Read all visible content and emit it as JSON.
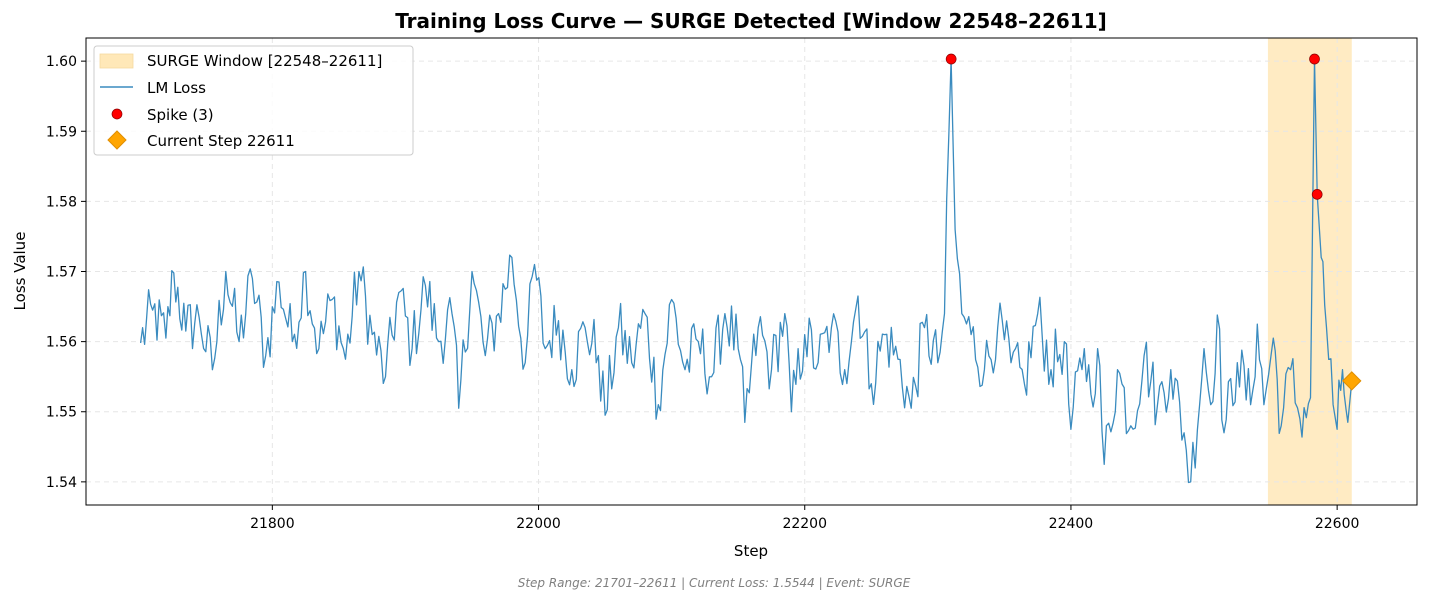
{
  "chart_data": {
    "type": "line",
    "title": "Training Loss Curve — SURGE Detected [Window 22548–22611]",
    "xlabel": "Step",
    "ylabel": "Loss Value",
    "xlim": [
      21660,
      22660
    ],
    "ylim": [
      1.5367,
      1.6033
    ],
    "x_ticks": [
      21800,
      22000,
      22200,
      22400,
      22600
    ],
    "x_tick_labels": [
      "21800",
      "22000",
      "22200",
      "22400",
      "22600"
    ],
    "y_ticks": [
      1.54,
      1.55,
      1.56,
      1.57,
      1.58,
      1.59,
      1.6
    ],
    "y_tick_labels": [
      "1.54",
      "1.55",
      "1.56",
      "1.57",
      "1.58",
      "1.59",
      "1.60"
    ],
    "grid": true,
    "legend_position": "top-left",
    "surge_window": {
      "name": "SURGE Window [22548–22611]",
      "start": 22548,
      "end": 22611,
      "color": "#ffe8b8"
    },
    "series": [
      {
        "name": "LM Loss",
        "color": "#3a8bbf",
        "step_start": 21701,
        "step_end": 22611,
        "points": [
          [
            21701,
            1.5598
          ],
          [
            21710,
            1.5645
          ],
          [
            21720,
            1.5605
          ],
          [
            21726,
            1.5698
          ],
          [
            21735,
            1.5615
          ],
          [
            21745,
            1.5635
          ],
          [
            21755,
            1.556
          ],
          [
            21765,
            1.57
          ],
          [
            21775,
            1.56
          ],
          [
            21785,
            1.569
          ],
          [
            21795,
            1.558
          ],
          [
            21805,
            1.5685
          ],
          [
            21815,
            1.56
          ],
          [
            21825,
            1.57
          ],
          [
            21835,
            1.559
          ],
          [
            21845,
            1.566
          ],
          [
            21855,
            1.5575
          ],
          [
            21865,
            1.57
          ],
          [
            21875,
            1.561
          ],
          [
            21885,
            1.555
          ],
          [
            21895,
            1.567
          ],
          [
            21905,
            1.559
          ],
          [
            21915,
            1.568
          ],
          [
            21925,
            1.56
          ],
          [
            21935,
            1.564
          ],
          [
            21940,
            1.5505
          ],
          [
            21950,
            1.57
          ],
          [
            21960,
            1.558
          ],
          [
            21970,
            1.564
          ],
          [
            21980,
            1.572
          ],
          [
            21990,
            1.557
          ],
          [
            21997,
            1.571
          ],
          [
            22005,
            1.559
          ],
          [
            22015,
            1.563
          ],
          [
            22025,
            1.556
          ],
          [
            22035,
            1.562
          ],
          [
            22045,
            1.558
          ],
          [
            22050,
            1.5495
          ],
          [
            22060,
            1.562
          ],
          [
            22070,
            1.557
          ],
          [
            22080,
            1.564
          ],
          [
            22090,
            1.551
          ],
          [
            22100,
            1.566
          ],
          [
            22110,
            1.556
          ],
          [
            22120,
            1.56
          ],
          [
            22130,
            1.555
          ],
          [
            22140,
            1.564
          ],
          [
            22150,
            1.559
          ],
          [
            22155,
            1.5485
          ],
          [
            22165,
            1.562
          ],
          [
            22175,
            1.556
          ],
          [
            22185,
            1.564
          ],
          [
            22190,
            1.55
          ],
          [
            22200,
            1.561
          ],
          [
            22210,
            1.557
          ],
          [
            22220,
            1.562
          ],
          [
            22230,
            1.556
          ],
          [
            22240,
            1.5665
          ],
          [
            22250,
            1.554
          ],
          [
            22260,
            1.561
          ],
          [
            22270,
            1.5575
          ],
          [
            22280,
            1.5505
          ],
          [
            22290,
            1.562
          ],
          [
            22300,
            1.557
          ],
          [
            22305,
            1.564
          ],
          [
            22310,
            1.6003
          ],
          [
            22313,
            1.576
          ],
          [
            22318,
            1.564
          ],
          [
            22325,
            1.561
          ],
          [
            22335,
            1.556
          ],
          [
            22345,
            1.562
          ],
          [
            22355,
            1.557
          ],
          [
            22365,
            1.554
          ],
          [
            22375,
            1.564
          ],
          [
            22385,
            1.556
          ],
          [
            22395,
            1.56
          ],
          [
            22400,
            1.5475
          ],
          [
            22410,
            1.559
          ],
          [
            22415,
            1.5525
          ],
          [
            22420,
            1.559
          ],
          [
            22425,
            1.5425
          ],
          [
            22435,
            1.556
          ],
          [
            22445,
            1.548
          ],
          [
            22455,
            1.558
          ],
          [
            22465,
            1.551
          ],
          [
            22475,
            1.556
          ],
          [
            22485,
            1.547
          ],
          [
            22490,
            1.54
          ],
          [
            22500,
            1.559
          ],
          [
            22505,
            1.551
          ],
          [
            22510,
            1.5638
          ],
          [
            22515,
            1.547
          ],
          [
            22525,
            1.557
          ],
          [
            22535,
            1.551
          ],
          [
            22540,
            1.5625
          ],
          [
            22545,
            1.551
          ],
          [
            22552,
            1.5605
          ],
          [
            22558,
            1.548
          ],
          [
            22565,
            1.556
          ],
          [
            22572,
            1.549
          ],
          [
            22580,
            1.552
          ],
          [
            22583,
            1.6003
          ],
          [
            22585,
            1.581
          ],
          [
            22588,
            1.572
          ],
          [
            22592,
            1.562
          ],
          [
            22597,
            1.551
          ],
          [
            22600,
            1.5475
          ],
          [
            22604,
            1.556
          ],
          [
            22608,
            1.5485
          ],
          [
            22611,
            1.5544
          ]
        ]
      }
    ],
    "spikes": {
      "name": "Spike (3)",
      "color": "#ff0000",
      "points": [
        [
          22310,
          1.6003
        ],
        [
          22583,
          1.6003
        ],
        [
          22585,
          1.581
        ]
      ]
    },
    "current": {
      "name": "Current Step 22611",
      "color": "#ffa500",
      "x": 22611,
      "y": 1.5544
    },
    "footer": "Step Range: 21701–22611 | Current Loss: 1.5544 | Event: SURGE"
  }
}
